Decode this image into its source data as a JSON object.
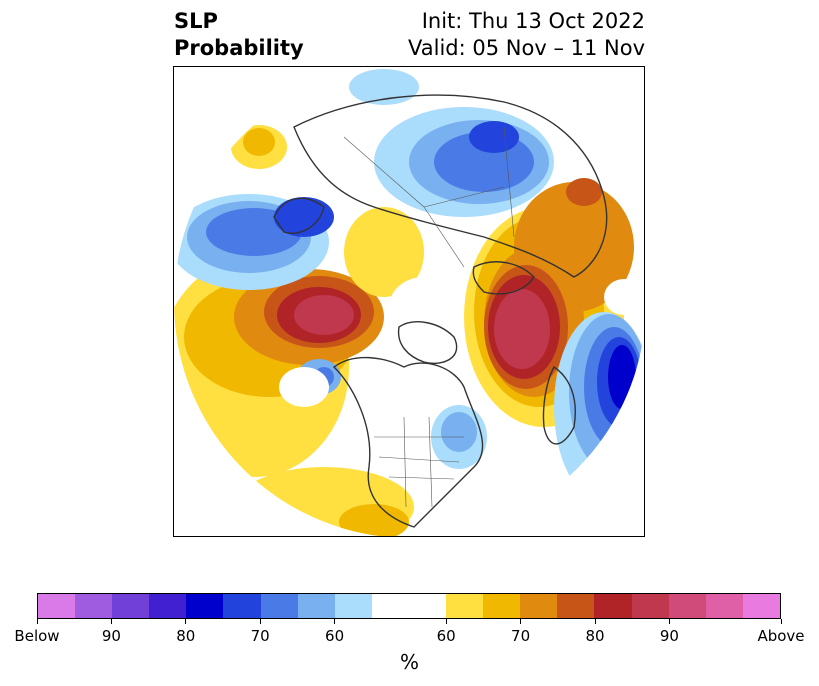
{
  "title": {
    "left_line1": "SLP",
    "left_line2": "Probability",
    "right_line1": "Init: Thu 13 Oct 2022",
    "right_line2": "Valid: 05 Nov – 11 Nov"
  },
  "colorbar": {
    "units": "%",
    "ticks": [
      "Below",
      "90",
      "80",
      "70",
      "60",
      "60",
      "70",
      "80",
      "90",
      "Above"
    ],
    "colors_below": [
      "#d97ae8",
      "#a05ce0",
      "#7040d8",
      "#4020d0",
      "#0000cc",
      "#2244dd",
      "#4a7ae6",
      "#78b0f0",
      "#aadcfb"
    ],
    "color_neutral": "#ffffff",
    "colors_above": [
      "#ffe040",
      "#f0b800",
      "#e08a10",
      "#c85518",
      "#b02428",
      "#c0384e",
      "#d04a7a",
      "#e060a8",
      "#e87ae0"
    ]
  },
  "map": {
    "projection": "north polar stereographic",
    "variable": "sea level pressure probability",
    "anomalies": [
      {
        "region": "north-central Pacific / Gulf of Alaska",
        "sign": "above",
        "peak": "80-90"
      },
      {
        "region": "north-eastern Pacific",
        "sign": "below",
        "peak": "70"
      },
      {
        "region": "Norwegian Sea / Scandinavia",
        "sign": "above",
        "peak": "80-90"
      },
      {
        "region": "north-eastern Atlantic near Iberia",
        "sign": "below",
        "peak": "80"
      },
      {
        "region": "Siberia / central Arctic",
        "sign": "below",
        "peak": "70"
      },
      {
        "region": "western Atlantic off Canada",
        "sign": "below",
        "peak": "60"
      },
      {
        "region": "Ural / Russia",
        "sign": "above",
        "peak": "70-80"
      }
    ]
  }
}
